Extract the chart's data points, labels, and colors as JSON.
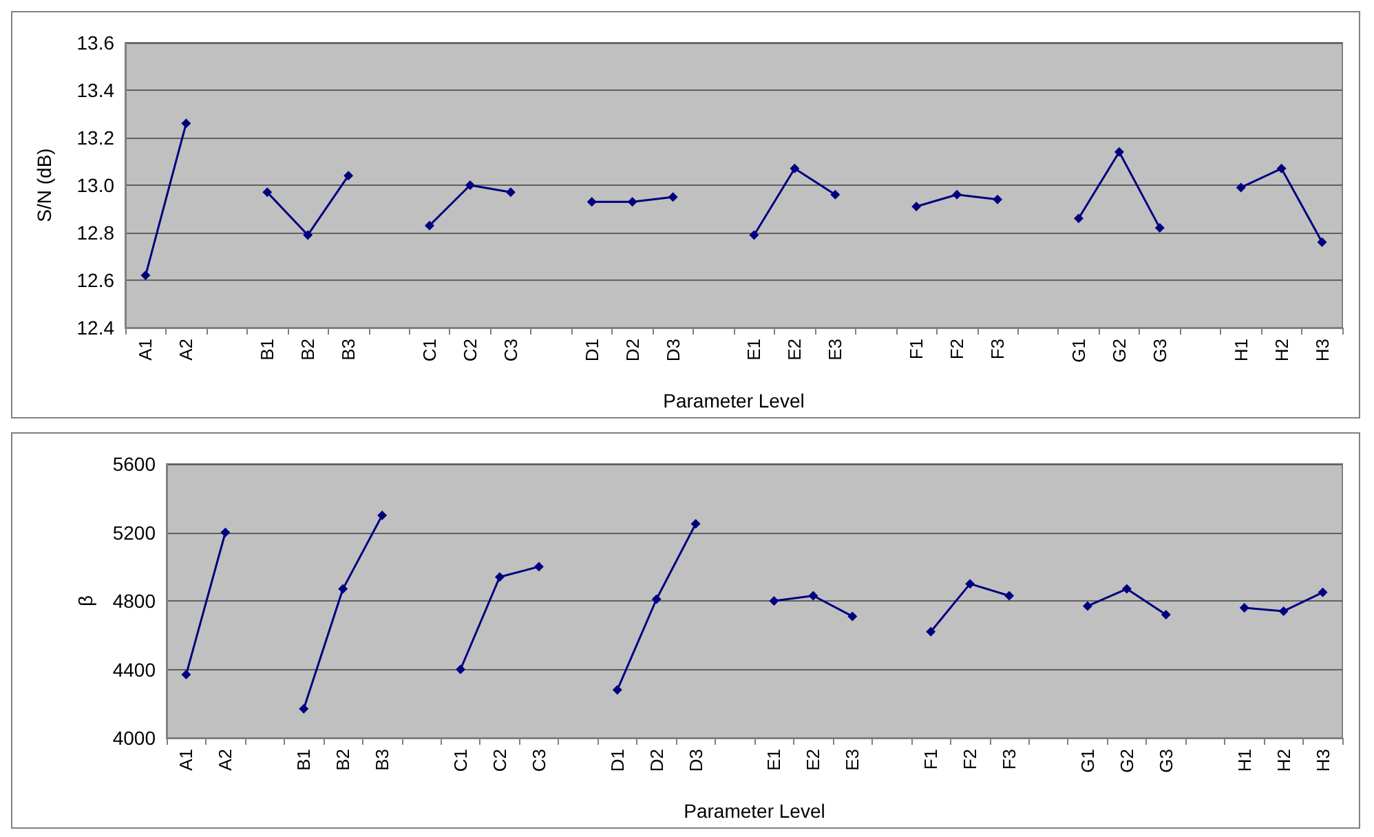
{
  "chart_data": [
    {
      "type": "line",
      "xlabel": "Parameter Level",
      "ylabel": "S/N (dB)",
      "categories": [
        "A1",
        "A2",
        null,
        "B1",
        "B2",
        "B3",
        null,
        "C1",
        "C2",
        "C3",
        null,
        "D1",
        "D2",
        "D3",
        null,
        "E1",
        "E2",
        "E3",
        null,
        "F1",
        "F2",
        "F3",
        null,
        "G1",
        "G2",
        "G3",
        null,
        "H1",
        "H2",
        "H3"
      ],
      "series": [
        {
          "color": "#000080",
          "values": [
            12.62,
            13.26,
            null,
            12.97,
            12.79,
            13.04,
            null,
            12.83,
            13.0,
            12.97,
            null,
            12.93,
            12.93,
            12.95,
            null,
            12.79,
            13.07,
            12.96,
            null,
            12.91,
            12.96,
            12.94,
            null,
            12.86,
            13.14,
            12.82,
            null,
            12.99,
            13.07,
            12.76
          ]
        }
      ],
      "ylim": [
        12.4,
        13.6
      ],
      "yticks": [
        12.4,
        12.6,
        12.8,
        {
          "value": 13,
          "label": "13.0"
        },
        13.2,
        13.4,
        13.6
      ],
      "grid": "y",
      "marker": "diamond",
      "line_style": "solid"
    },
    {
      "type": "line",
      "xlabel": "Parameter Level",
      "ylabel": "β",
      "categories": [
        "A1",
        "A2",
        null,
        "B1",
        "B2",
        "B3",
        null,
        "C1",
        "C2",
        "C3",
        null,
        "D1",
        "D2",
        "D3",
        null,
        "E1",
        "E2",
        "E3",
        null,
        "F1",
        "F2",
        "F3",
        null,
        "G1",
        "G2",
        "G3",
        null,
        "H1",
        "H2",
        "H3"
      ],
      "series": [
        {
          "color": "#000080",
          "values": [
            4370,
            5200,
            null,
            4170,
            4870,
            5300,
            null,
            4400,
            4940,
            5000,
            null,
            4280,
            4810,
            5250,
            null,
            4800,
            4830,
            4710,
            null,
            4620,
            4900,
            4830,
            null,
            4770,
            4870,
            4720,
            null,
            4760,
            4740,
            4850
          ]
        }
      ],
      "ylim": [
        4000,
        5600
      ],
      "yticks": [
        4000,
        4400,
        4800,
        5200,
        5600
      ],
      "grid": "y",
      "marker": "diamond",
      "line_style": "solid"
    }
  ]
}
